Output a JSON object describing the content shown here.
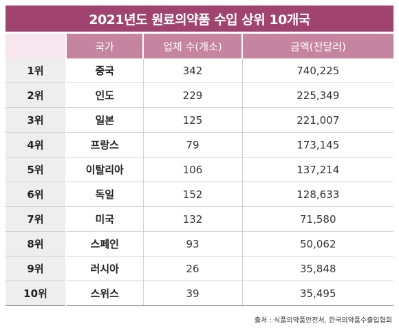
{
  "title": "2021년도 원료의약품 수입 상위 10개국",
  "columns": {
    "rank": "",
    "country": "국가",
    "count": "업체 수(개소)",
    "amount": "금액(천달러)"
  },
  "rows": [
    {
      "rank": "1위",
      "country": "중국",
      "count": "342",
      "amount": "740,225"
    },
    {
      "rank": "2위",
      "country": "인도",
      "count": "229",
      "amount": "225,349"
    },
    {
      "rank": "3위",
      "country": "일본",
      "count": "125",
      "amount": "221,007"
    },
    {
      "rank": "4위",
      "country": "프랑스",
      "count": "79",
      "amount": "173,145"
    },
    {
      "rank": "5위",
      "country": "이탈리아",
      "count": "106",
      "amount": "137,214"
    },
    {
      "rank": "6위",
      "country": "독일",
      "count": "152",
      "amount": "128,633"
    },
    {
      "rank": "7위",
      "country": "미국",
      "count": "132",
      "amount": "71,580"
    },
    {
      "rank": "8위",
      "country": "스페인",
      "count": "93",
      "amount": "50,062"
    },
    {
      "rank": "9위",
      "country": "러시아",
      "count": "26",
      "amount": "35,848"
    },
    {
      "rank": "10위",
      "country": "스위스",
      "count": "39",
      "amount": "35,495"
    }
  ],
  "source": "출처 : 식품의약품안전처, 한국의약품수출입협회",
  "colors": {
    "title_bg": "#a0446f",
    "header_bg": "#c5849f",
    "rank_bg": "#eeeeee"
  }
}
